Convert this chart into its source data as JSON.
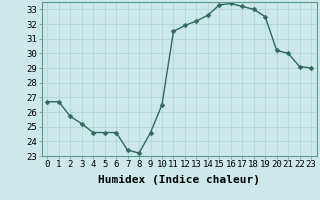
{
  "x": [
    0,
    1,
    2,
    3,
    4,
    5,
    6,
    7,
    8,
    9,
    10,
    11,
    12,
    13,
    14,
    15,
    16,
    17,
    18,
    19,
    20,
    21,
    22,
    23
  ],
  "y": [
    26.7,
    26.7,
    25.7,
    25.2,
    24.6,
    24.6,
    24.6,
    23.4,
    23.2,
    24.6,
    26.5,
    31.5,
    31.9,
    32.2,
    32.6,
    33.3,
    33.4,
    33.2,
    33.0,
    32.5,
    30.2,
    30.0,
    29.1,
    29.0
  ],
  "line_color": "#2e6b5e",
  "marker_color": "#2e6b5e",
  "bg_color": "#cce8e8",
  "grid_color": "#b0d8d8",
  "xlabel": "Humidex (Indice chaleur)",
  "ylim": [
    23,
    33.5
  ],
  "xlim": [
    -0.5,
    23.5
  ],
  "yticks": [
    23,
    24,
    25,
    26,
    27,
    28,
    29,
    30,
    31,
    32,
    33
  ],
  "xticks": [
    0,
    1,
    2,
    3,
    4,
    5,
    6,
    7,
    8,
    9,
    10,
    11,
    12,
    13,
    14,
    15,
    16,
    17,
    18,
    19,
    20,
    21,
    22,
    23
  ],
  "xlabel_fontsize": 8,
  "tick_fontsize": 6.5,
  "linewidth": 1.0,
  "markersize": 2.5
}
